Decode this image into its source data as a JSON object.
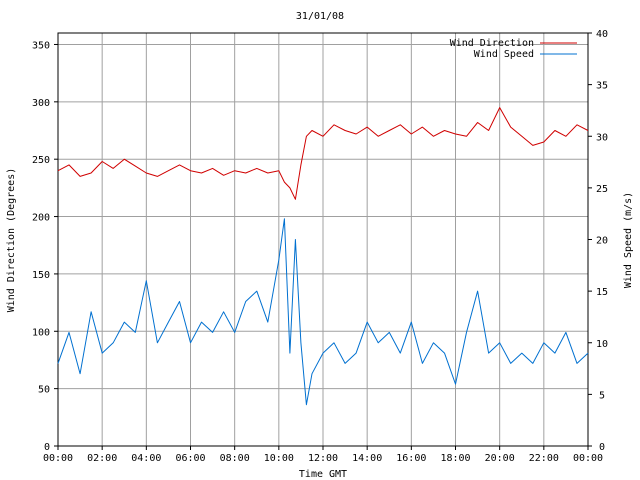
{
  "chart_data": {
    "type": "line",
    "title": "31/01/08",
    "xlabel": "Time GMT",
    "ylabel_left": "Wind Direction (Degrees)",
    "ylabel_right": "Wind Speed (m/s)",
    "x_ticks": [
      "00:00",
      "02:00",
      "04:00",
      "06:00",
      "08:00",
      "10:00",
      "12:00",
      "14:00",
      "16:00",
      "18:00",
      "20:00",
      "22:00",
      "00:00"
    ],
    "x_range_hours": [
      0,
      24
    ],
    "ylim_left": [
      0,
      360
    ],
    "yticks_left": [
      0,
      50,
      100,
      150,
      200,
      250,
      300,
      350
    ],
    "ylim_right": [
      0,
      40
    ],
    "yticks_right": [
      0,
      5,
      10,
      15,
      20,
      25,
      30,
      35,
      40
    ],
    "grid": true,
    "legend_position": "top-right",
    "series": [
      {
        "name": "Wind Direction",
        "axis": "left",
        "color": "#d00000",
        "x_hours": [
          0,
          0.5,
          1,
          1.5,
          2,
          2.5,
          3,
          3.5,
          4,
          4.5,
          5,
          5.5,
          6,
          6.5,
          7,
          7.5,
          8,
          8.5,
          9,
          9.5,
          10,
          10.25,
          10.5,
          10.75,
          11,
          11.25,
          11.5,
          12,
          12.5,
          13,
          13.5,
          14,
          14.5,
          15,
          15.5,
          16,
          16.5,
          17,
          17.5,
          18,
          18.5,
          19,
          19.5,
          20,
          20.5,
          21,
          21.5,
          22,
          22.5,
          23,
          23.5,
          24
        ],
        "values": [
          240,
          245,
          235,
          238,
          248,
          242,
          250,
          244,
          238,
          235,
          240,
          245,
          240,
          238,
          242,
          236,
          240,
          238,
          242,
          238,
          240,
          230,
          225,
          215,
          245,
          270,
          275,
          270,
          280,
          275,
          272,
          278,
          270,
          275,
          280,
          272,
          278,
          270,
          275,
          272,
          270,
          282,
          275,
          295,
          278,
          270,
          262,
          265,
          275,
          270,
          280,
          275
        ]
      },
      {
        "name": "Wind Speed",
        "axis": "right",
        "color": "#0070d0",
        "x_hours": [
          0,
          0.5,
          1,
          1.5,
          2,
          2.5,
          3,
          3.5,
          4,
          4.5,
          5,
          5.5,
          6,
          6.5,
          7,
          7.5,
          8,
          8.5,
          9,
          9.5,
          10,
          10.25,
          10.5,
          10.75,
          11,
          11.25,
          11.5,
          12,
          12.5,
          13,
          13.5,
          14,
          14.5,
          15,
          15.5,
          16,
          16.5,
          17,
          17.5,
          18,
          18.5,
          19,
          19.5,
          20,
          20.5,
          21,
          21.5,
          22,
          22.5,
          23,
          23.5,
          24
        ],
        "values": [
          8,
          11,
          7,
          13,
          9,
          10,
          12,
          11,
          16,
          10,
          12,
          14,
          10,
          12,
          11,
          13,
          11,
          14,
          15,
          12,
          18,
          22,
          9,
          20,
          10,
          4,
          7,
          9,
          10,
          8,
          9,
          12,
          10,
          11,
          9,
          12,
          8,
          10,
          9,
          6,
          11,
          15,
          9,
          10,
          8,
          9,
          8,
          10,
          9,
          11,
          8,
          9
        ]
      }
    ]
  }
}
